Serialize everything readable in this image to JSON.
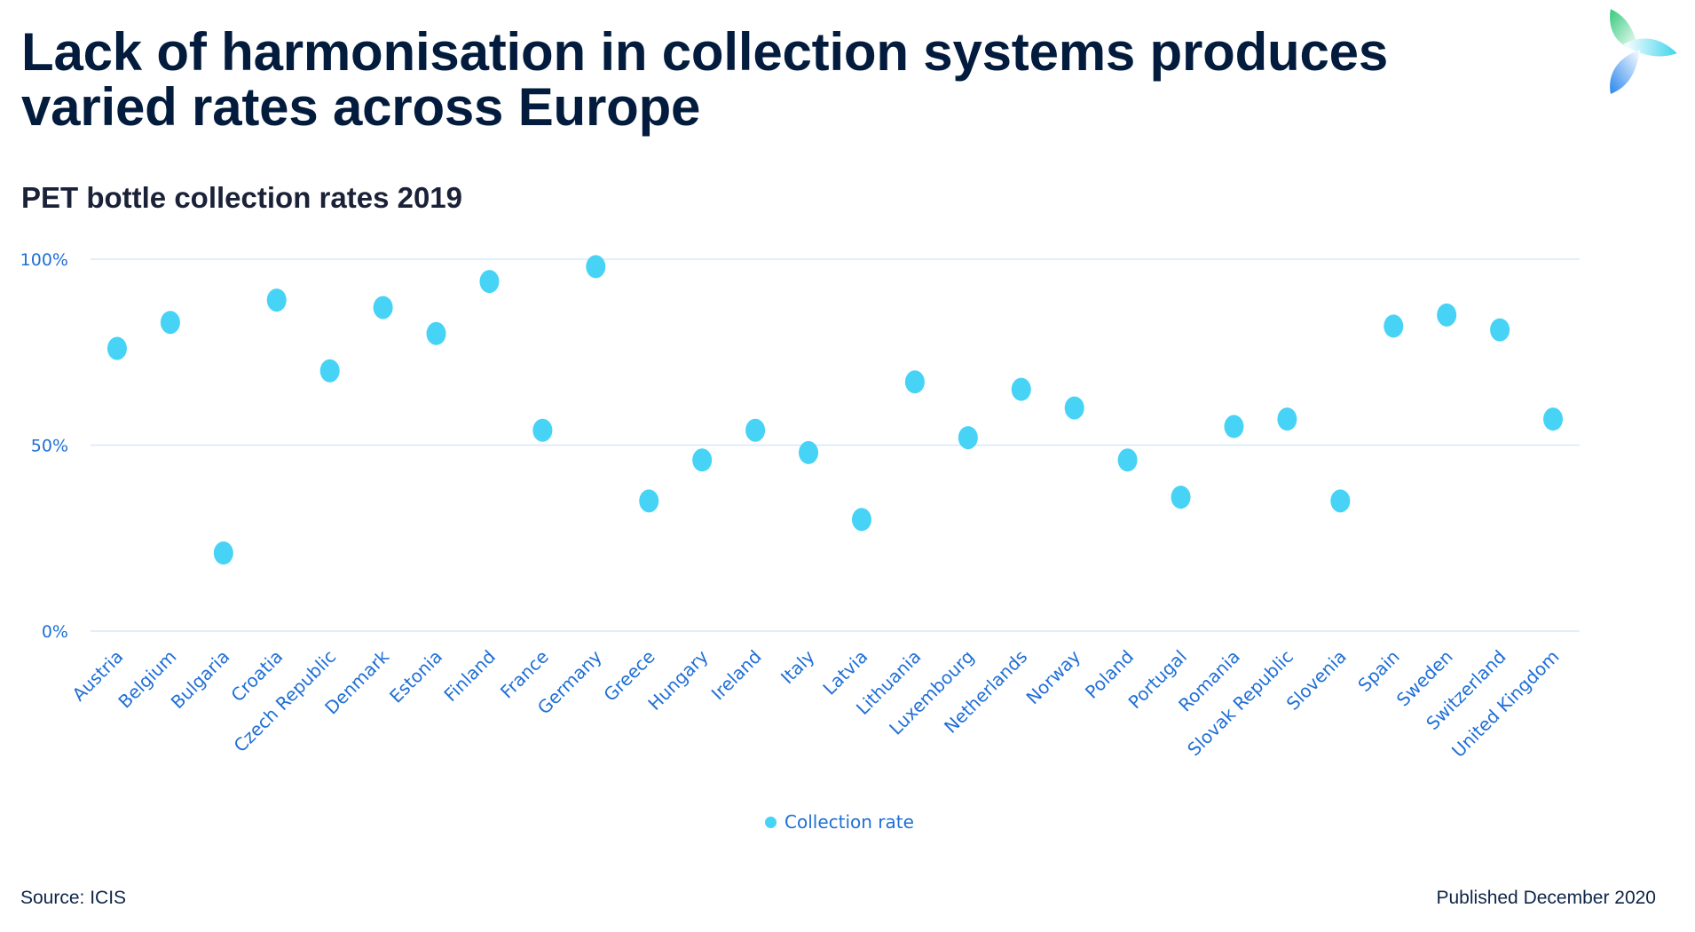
{
  "header": {
    "title_line1": "Lack of harmonisation in collection systems produces",
    "title_line2": "varied rates across Europe",
    "subtitle": "PET bottle collection rates 2019",
    "logo_icon": "tri-leaf-logo-icon"
  },
  "footer": {
    "source": "Source: ICIS",
    "published": "Published December 2020"
  },
  "colors": {
    "marker": "#47d3f5",
    "gridline": "#d6e8fb",
    "axis_text": "#1f6fd6",
    "title": "#031c3d"
  },
  "chart_data": {
    "type": "scatter",
    "title": "PET bottle collection rates 2019",
    "xlabel": "",
    "ylabel": "",
    "ylim": [
      0,
      100
    ],
    "y_ticks": [
      0,
      50,
      100
    ],
    "y_tick_labels": [
      "0%",
      "50%",
      "100%"
    ],
    "grid": true,
    "legend_position": "bottom-center",
    "categories": [
      "Austria",
      "Belgium",
      "Bulgaria",
      "Croatia",
      "Czech Republic",
      "Denmark",
      "Estonia",
      "Finland",
      "France",
      "Germany",
      "Greece",
      "Hungary",
      "Ireland",
      "Italy",
      "Latvia",
      "Lithuania",
      "Luxembourg",
      "Netherlands",
      "Norway",
      "Poland",
      "Portugal",
      "Romania",
      "Slovak Republic",
      "Slovenia",
      "Spain",
      "Sweden",
      "Switzerland",
      "United Kingdom"
    ],
    "series": [
      {
        "name": "Collection rate",
        "values": [
          76,
          83,
          21,
          89,
          70,
          87,
          80,
          94,
          54,
          98,
          35,
          46,
          54,
          48,
          30,
          67,
          52,
          65,
          60,
          46,
          36,
          55,
          57,
          35,
          82,
          85,
          81,
          57
        ]
      }
    ]
  }
}
